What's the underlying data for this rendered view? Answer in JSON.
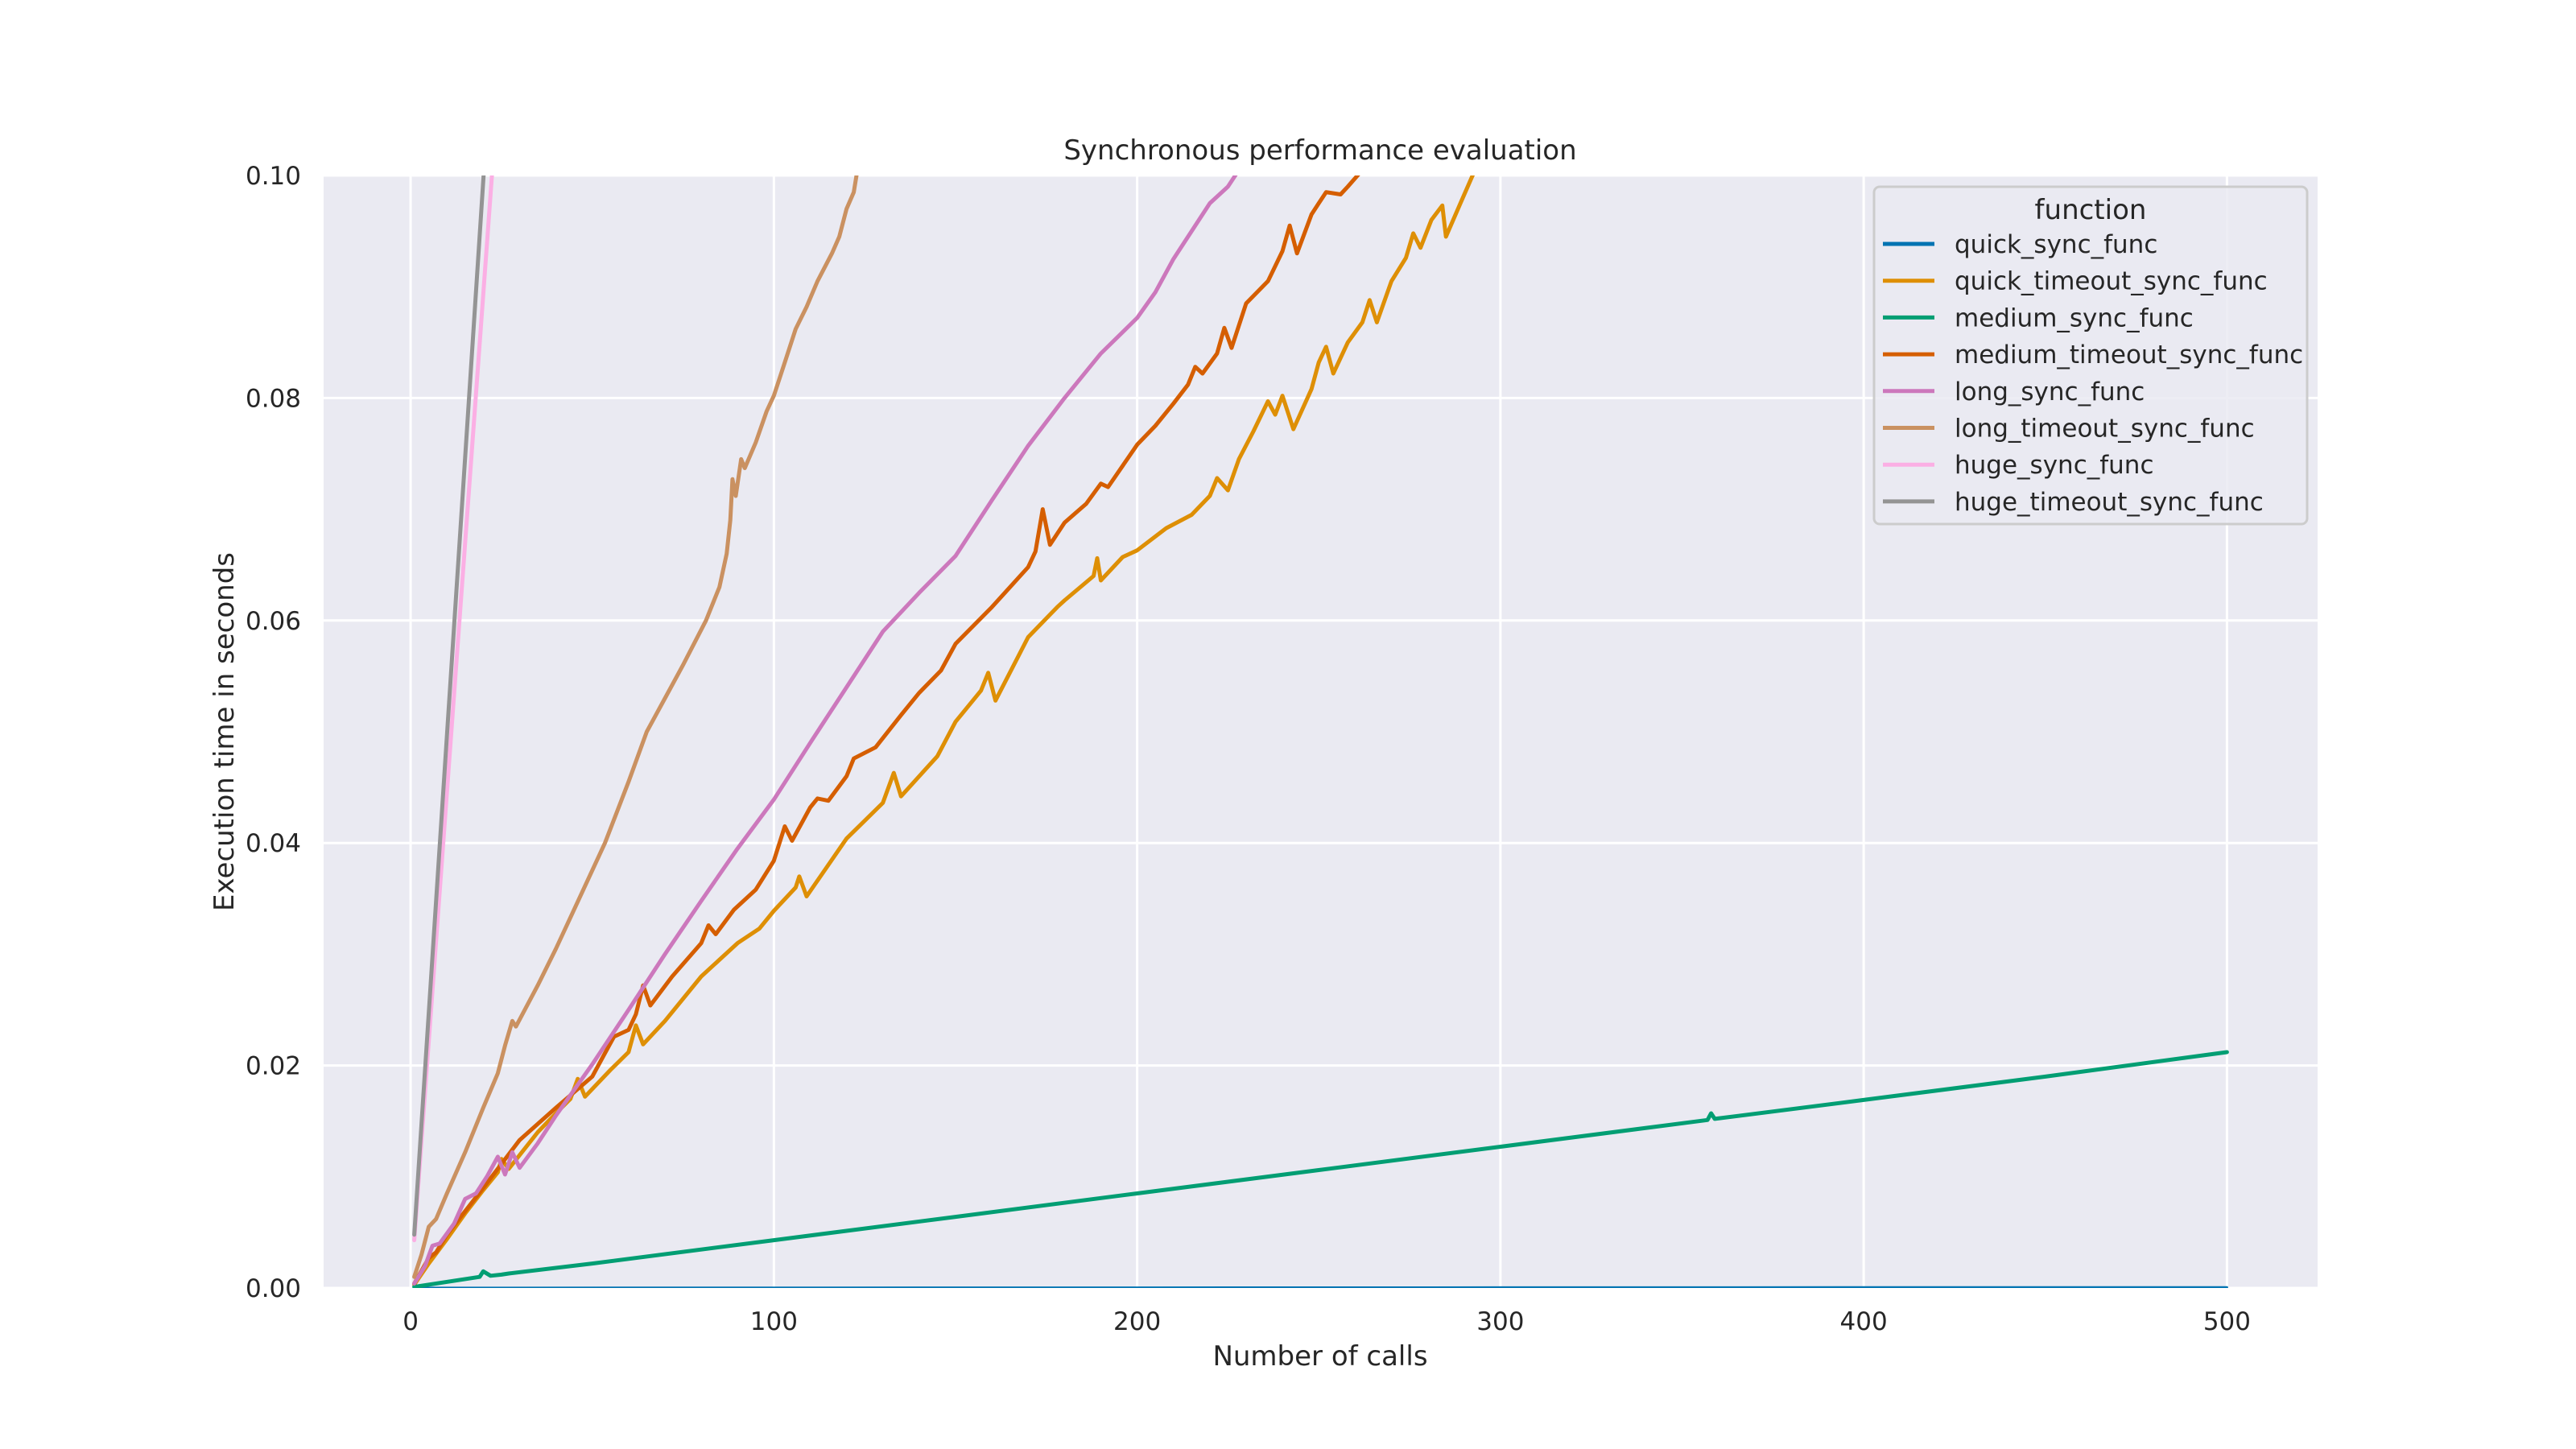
{
  "chart_data": {
    "type": "line",
    "title": "Synchronous performance evaluation",
    "xlabel": "Number of calls",
    "ylabel": "Execution time in seconds",
    "xlim": [
      -23.95,
      524.95
    ],
    "ylim": [
      0.0,
      0.1
    ],
    "xticks": [
      0,
      100,
      200,
      300,
      400,
      500
    ],
    "xtick_labels": [
      "0",
      "100",
      "200",
      "300",
      "400",
      "500"
    ],
    "yticks": [
      0.0,
      0.02,
      0.04,
      0.06,
      0.08,
      0.1
    ],
    "ytick_labels": [
      "0.00",
      "0.02",
      "0.04",
      "0.06",
      "0.08",
      "0.10"
    ],
    "grid": true,
    "background": "#eaeaf2",
    "legend": {
      "title": "function",
      "position": "upper right"
    },
    "series": [
      {
        "name": "quick_sync_func",
        "color": "#0173b2",
        "points": [
          [
            1,
            1e-05
          ],
          [
            100,
            2e-05
          ],
          [
            200,
            3e-05
          ],
          [
            300,
            4e-05
          ],
          [
            400,
            5e-05
          ],
          [
            500,
            6e-05
          ]
        ]
      },
      {
        "name": "quick_timeout_sync_func",
        "color": "#de8f05",
        "points": [
          [
            1,
            0.0003
          ],
          [
            5,
            0.0022
          ],
          [
            10,
            0.0044
          ],
          [
            15,
            0.0067
          ],
          [
            20,
            0.0088
          ],
          [
            24,
            0.0104
          ],
          [
            25,
            0.0116
          ],
          [
            27,
            0.0107
          ],
          [
            35,
            0.014
          ],
          [
            40,
            0.0157
          ],
          [
            44,
            0.017
          ],
          [
            46,
            0.0188
          ],
          [
            48,
            0.0172
          ],
          [
            55,
            0.0196
          ],
          [
            60,
            0.0212
          ],
          [
            62,
            0.0236
          ],
          [
            64,
            0.0219
          ],
          [
            70,
            0.024
          ],
          [
            80,
            0.028
          ],
          [
            90,
            0.031
          ],
          [
            96,
            0.0323
          ],
          [
            100,
            0.0339
          ],
          [
            106,
            0.036
          ],
          [
            107,
            0.037
          ],
          [
            109,
            0.0352
          ],
          [
            120,
            0.0404
          ],
          [
            130,
            0.0436
          ],
          [
            133,
            0.0463
          ],
          [
            135,
            0.0442
          ],
          [
            145,
            0.0478
          ],
          [
            150,
            0.0509
          ],
          [
            157,
            0.0537
          ],
          [
            159,
            0.0553
          ],
          [
            161,
            0.0528
          ],
          [
            170,
            0.0585
          ],
          [
            178,
            0.0612
          ],
          [
            180,
            0.0618
          ],
          [
            188,
            0.064
          ],
          [
            189,
            0.0656
          ],
          [
            190,
            0.0636
          ],
          [
            196,
            0.0657
          ],
          [
            200,
            0.0663
          ],
          [
            208,
            0.0683
          ],
          [
            215,
            0.0695
          ],
          [
            220,
            0.0712
          ],
          [
            222,
            0.0728
          ],
          [
            225,
            0.0717
          ],
          [
            228,
            0.0745
          ],
          [
            232,
            0.077
          ],
          [
            236,
            0.0797
          ],
          [
            238,
            0.0785
          ],
          [
            240,
            0.0802
          ],
          [
            243,
            0.0772
          ],
          [
            248,
            0.0808
          ],
          [
            250,
            0.0832
          ],
          [
            252,
            0.0846
          ],
          [
            254,
            0.0822
          ],
          [
            258,
            0.085
          ],
          [
            262,
            0.0868
          ],
          [
            264,
            0.0888
          ],
          [
            266,
            0.0868
          ],
          [
            270,
            0.0905
          ],
          [
            274,
            0.0926
          ],
          [
            276,
            0.0948
          ],
          [
            278,
            0.0935
          ],
          [
            281,
            0.096
          ],
          [
            284,
            0.0973
          ],
          [
            285,
            0.0945
          ],
          [
            289,
            0.0975
          ],
          [
            293,
            0.1005
          ]
        ]
      },
      {
        "name": "medium_sync_func",
        "color": "#029e73",
        "points": [
          [
            1,
            0.0001
          ],
          [
            19,
            0.001
          ],
          [
            20,
            0.0015
          ],
          [
            22,
            0.0011
          ],
          [
            25,
            0.0012
          ],
          [
            27,
            0.0013
          ],
          [
            50,
            0.0022
          ],
          [
            100,
            0.0043
          ],
          [
            150,
            0.0064
          ],
          [
            200,
            0.0085
          ],
          [
            250,
            0.0106
          ],
          [
            300,
            0.0127
          ],
          [
            357,
            0.0151
          ],
          [
            358,
            0.0157
          ],
          [
            359,
            0.0152
          ],
          [
            400,
            0.0169
          ],
          [
            450,
            0.019
          ],
          [
            500,
            0.0212
          ]
        ]
      },
      {
        "name": "medium_timeout_sync_func",
        "color": "#d55e00",
        "points": [
          [
            1,
            0.0004
          ],
          [
            5,
            0.0027
          ],
          [
            7,
            0.0032
          ],
          [
            10,
            0.0048
          ],
          [
            20,
            0.009
          ],
          [
            30,
            0.0133
          ],
          [
            40,
            0.0162
          ],
          [
            50,
            0.019
          ],
          [
            53,
            0.0208
          ],
          [
            56,
            0.0226
          ],
          [
            60,
            0.0232
          ],
          [
            62,
            0.0246
          ],
          [
            64,
            0.0272
          ],
          [
            66,
            0.0254
          ],
          [
            72,
            0.028
          ],
          [
            80,
            0.031
          ],
          [
            82,
            0.0326
          ],
          [
            84,
            0.0318
          ],
          [
            89,
            0.034
          ],
          [
            95,
            0.0358
          ],
          [
            100,
            0.0384
          ],
          [
            103,
            0.0415
          ],
          [
            105,
            0.0402
          ],
          [
            110,
            0.0432
          ],
          [
            112,
            0.044
          ],
          [
            115,
            0.0438
          ],
          [
            120,
            0.046
          ],
          [
            122,
            0.0476
          ],
          [
            128,
            0.0486
          ],
          [
            135,
            0.0515
          ],
          [
            140,
            0.0535
          ],
          [
            146,
            0.0555
          ],
          [
            150,
            0.0579
          ],
          [
            160,
            0.0612
          ],
          [
            165,
            0.063
          ],
          [
            170,
            0.0648
          ],
          [
            172,
            0.0662
          ],
          [
            174,
            0.07
          ],
          [
            176,
            0.0668
          ],
          [
            180,
            0.0688
          ],
          [
            186,
            0.0705
          ],
          [
            190,
            0.0723
          ],
          [
            192,
            0.072
          ],
          [
            200,
            0.0758
          ],
          [
            205,
            0.0775
          ],
          [
            210,
            0.0795
          ],
          [
            214,
            0.0812
          ],
          [
            216,
            0.0828
          ],
          [
            218,
            0.0822
          ],
          [
            222,
            0.084
          ],
          [
            224,
            0.0863
          ],
          [
            226,
            0.0845
          ],
          [
            230,
            0.0885
          ],
          [
            236,
            0.0905
          ],
          [
            240,
            0.0932
          ],
          [
            242,
            0.0955
          ],
          [
            244,
            0.093
          ],
          [
            248,
            0.0965
          ],
          [
            250,
            0.0975
          ],
          [
            252,
            0.0985
          ],
          [
            256,
            0.0983
          ],
          [
            258,
            0.099
          ],
          [
            262,
            0.1005
          ]
        ]
      },
      {
        "name": "long_sync_func",
        "color": "#cc78bc",
        "points": [
          [
            1,
            0.0004
          ],
          [
            4,
            0.002
          ],
          [
            6,
            0.0038
          ],
          [
            8,
            0.004
          ],
          [
            12,
            0.0058
          ],
          [
            15,
            0.008
          ],
          [
            18,
            0.0085
          ],
          [
            21,
            0.01
          ],
          [
            24,
            0.0118
          ],
          [
            26,
            0.0102
          ],
          [
            28,
            0.0122
          ],
          [
            30,
            0.0108
          ],
          [
            35,
            0.013
          ],
          [
            40,
            0.0155
          ],
          [
            50,
            0.0201
          ],
          [
            60,
            0.025
          ],
          [
            70,
            0.03
          ],
          [
            80,
            0.0348
          ],
          [
            90,
            0.0395
          ],
          [
            100,
            0.0439
          ],
          [
            110,
            0.049
          ],
          [
            120,
            0.054
          ],
          [
            130,
            0.059
          ],
          [
            140,
            0.0625
          ],
          [
            150,
            0.0658
          ],
          [
            160,
            0.0708
          ],
          [
            170,
            0.0757
          ],
          [
            180,
            0.08
          ],
          [
            190,
            0.084
          ],
          [
            200,
            0.0872
          ],
          [
            205,
            0.0895
          ],
          [
            210,
            0.0925
          ],
          [
            215,
            0.095
          ],
          [
            220,
            0.0975
          ],
          [
            225,
            0.099
          ],
          [
            228,
            0.1005
          ]
        ]
      },
      {
        "name": "long_timeout_sync_func",
        "color": "#ca9161",
        "points": [
          [
            1,
            0.001
          ],
          [
            3,
            0.003
          ],
          [
            5,
            0.0055
          ],
          [
            7,
            0.0062
          ],
          [
            10,
            0.0085
          ],
          [
            15,
            0.0122
          ],
          [
            20,
            0.0162
          ],
          [
            24,
            0.0193
          ],
          [
            26,
            0.0218
          ],
          [
            28,
            0.024
          ],
          [
            29,
            0.0235
          ],
          [
            35,
            0.0272
          ],
          [
            40,
            0.0305
          ],
          [
            45,
            0.034
          ],
          [
            53.5,
            0.04
          ],
          [
            60,
            0.0455
          ],
          [
            65,
            0.05
          ],
          [
            70,
            0.053
          ],
          [
            75,
            0.056
          ],
          [
            81.3,
            0.06
          ],
          [
            85,
            0.063
          ],
          [
            87,
            0.066
          ],
          [
            88,
            0.069
          ],
          [
            88.6,
            0.0727
          ],
          [
            89.5,
            0.0712
          ],
          [
            91,
            0.0745
          ],
          [
            92,
            0.0737
          ],
          [
            95,
            0.076
          ],
          [
            98,
            0.0788
          ],
          [
            100,
            0.0802
          ],
          [
            103,
            0.0832
          ],
          [
            106,
            0.0862
          ],
          [
            109,
            0.0882
          ],
          [
            112,
            0.0905
          ],
          [
            116,
            0.093
          ],
          [
            118,
            0.0945
          ],
          [
            120,
            0.097
          ],
          [
            122,
            0.0985
          ],
          [
            123,
            0.1005
          ]
        ]
      },
      {
        "name": "huge_sync_func",
        "color": "#fbafe4",
        "points": [
          [
            1,
            0.0043
          ],
          [
            22.5,
            0.1005
          ]
        ]
      },
      {
        "name": "huge_timeout_sync_func",
        "color": "#949494",
        "points": [
          [
            1,
            0.0048
          ],
          [
            20.2,
            0.1005
          ]
        ]
      }
    ]
  }
}
